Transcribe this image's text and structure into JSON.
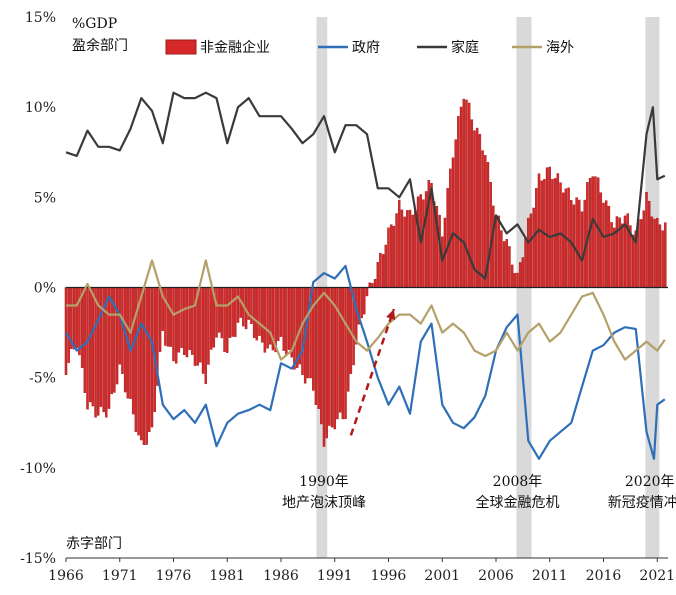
{
  "chart_data": {
    "type": "bar+line",
    "unit_label": "%GDP",
    "subtitle": "盈余部门",
    "bottom_label": "赤字部门",
    "ylim": [
      -15,
      15
    ],
    "yticks": [
      "15%",
      "10%",
      "5%",
      "0%",
      "-5%",
      "-10%",
      "-15%"
    ],
    "ytick_values": [
      15,
      10,
      5,
      0,
      -5,
      -10,
      -15
    ],
    "xlim": [
      1966,
      2022
    ],
    "xticks": [
      "1966",
      "1971",
      "1976",
      "1981",
      "1986",
      "1991",
      "1996",
      "2001",
      "2006",
      "2011",
      "2016",
      "2021"
    ],
    "xtick_values": [
      1966,
      1971,
      1976,
      1981,
      1986,
      1991,
      1996,
      2001,
      2006,
      2011,
      2016,
      2021
    ],
    "grid": false,
    "legend_position": "top",
    "shaded_periods": [
      [
        1989.3,
        1990.3
      ],
      [
        2007.9,
        2009.3
      ],
      [
        2019.9,
        2021.2
      ]
    ],
    "annotations": [
      {
        "line1": "1990年",
        "line2": "地产泡沫顶峰",
        "x": 1990.0
      },
      {
        "line1": "2008年",
        "line2": "全球金融危机",
        "x": 2008.0
      },
      {
        "line1": "2020年",
        "line2": "新冠疫情冲击",
        "x": 2020.3
      }
    ],
    "arrow": {
      "from": [
        1992.5,
        -8.2
      ],
      "to": [
        1996.5,
        -1.2
      ],
      "color": "#b01a1a"
    },
    "series": [
      {
        "name": "非金融企业",
        "kind": "bar",
        "color": "#d62828",
        "edge": "#9e1b1b",
        "points": [
          [
            1966,
            -4.5
          ],
          [
            1967,
            -3.0
          ],
          [
            1968,
            -6.5
          ],
          [
            1969,
            -7.0
          ],
          [
            1970,
            -6.8
          ],
          [
            1971,
            -4.5
          ],
          [
            1972,
            -6.5
          ],
          [
            1973,
            -8.8
          ],
          [
            1974,
            -8.0
          ],
          [
            1975,
            -2.5
          ],
          [
            1976,
            -4.0
          ],
          [
            1977,
            -3.5
          ],
          [
            1978,
            -4.0
          ],
          [
            1979,
            -5.0
          ],
          [
            1980,
            -2.5
          ],
          [
            1981,
            -3.5
          ],
          [
            1982,
            -2.0
          ],
          [
            1983,
            -2.0
          ],
          [
            1984,
            -3.0
          ],
          [
            1985,
            -3.5
          ],
          [
            1986,
            -3.0
          ],
          [
            1987,
            -4.0
          ],
          [
            1988,
            -4.8
          ],
          [
            1989,
            -5.5
          ],
          [
            1990,
            -8.5
          ],
          [
            1991,
            -7.5
          ],
          [
            1992,
            -7.0
          ],
          [
            1993,
            -3.0
          ],
          [
            1994,
            -0.5
          ],
          [
            1995,
            1.2
          ],
          [
            1996,
            3.0
          ],
          [
            1997,
            4.5
          ],
          [
            1998,
            4.0
          ],
          [
            1999,
            5.0
          ],
          [
            2000,
            5.8
          ],
          [
            2001,
            3.0
          ],
          [
            2002,
            7.5
          ],
          [
            2003,
            10.8
          ],
          [
            2004,
            9.0
          ],
          [
            2005,
            7.5
          ],
          [
            2006,
            4.0
          ],
          [
            2007,
            2.5
          ],
          [
            2008,
            0.5
          ],
          [
            2009,
            3.5
          ],
          [
            2010,
            6.0
          ],
          [
            2011,
            6.5
          ],
          [
            2012,
            5.8
          ],
          [
            2013,
            5.0
          ],
          [
            2014,
            4.5
          ],
          [
            2015,
            6.5
          ],
          [
            2016,
            5.0
          ],
          [
            2017,
            3.5
          ],
          [
            2018,
            4.0
          ],
          [
            2019,
            3.0
          ],
          [
            2020,
            5.0
          ],
          [
            2021,
            3.5
          ]
        ]
      },
      {
        "name": "政府",
        "kind": "line",
        "color": "#2e6fb8",
        "points": [
          [
            1966,
            -2.5
          ],
          [
            1967,
            -3.5
          ],
          [
            1968,
            -3.0
          ],
          [
            1969,
            -1.8
          ],
          [
            1970,
            -0.5
          ],
          [
            1971,
            -1.5
          ],
          [
            1972,
            -3.5
          ],
          [
            1973,
            -2.0
          ],
          [
            1974,
            -3.0
          ],
          [
            1975,
            -6.5
          ],
          [
            1976,
            -7.3
          ],
          [
            1977,
            -6.8
          ],
          [
            1978,
            -7.5
          ],
          [
            1979,
            -6.5
          ],
          [
            1980,
            -8.8
          ],
          [
            1981,
            -7.5
          ],
          [
            1982,
            -7.0
          ],
          [
            1983,
            -6.8
          ],
          [
            1984,
            -6.5
          ],
          [
            1985,
            -6.8
          ],
          [
            1986,
            -4.2
          ],
          [
            1987,
            -4.5
          ],
          [
            1988,
            -3.5
          ],
          [
            1989,
            0.3
          ],
          [
            1990,
            0.8
          ],
          [
            1991,
            0.5
          ],
          [
            1992,
            1.2
          ],
          [
            1993,
            -1.2
          ],
          [
            1994,
            -3.0
          ],
          [
            1995,
            -5.0
          ],
          [
            1996,
            -6.5
          ],
          [
            1997,
            -5.5
          ],
          [
            1998,
            -7.0
          ],
          [
            1999,
            -3.0
          ],
          [
            2000,
            -2.0
          ],
          [
            2001,
            -6.5
          ],
          [
            2002,
            -7.5
          ],
          [
            2003,
            -7.8
          ],
          [
            2004,
            -7.2
          ],
          [
            2005,
            -6.0
          ],
          [
            2006,
            -3.5
          ],
          [
            2007,
            -2.2
          ],
          [
            2008,
            -1.5
          ],
          [
            2009,
            -8.5
          ],
          [
            2010,
            -9.5
          ],
          [
            2011,
            -8.5
          ],
          [
            2012,
            -8.0
          ],
          [
            2013,
            -7.5
          ],
          [
            2014,
            -5.5
          ],
          [
            2015,
            -3.5
          ],
          [
            2016,
            -3.2
          ],
          [
            2017,
            -2.5
          ],
          [
            2018,
            -2.2
          ],
          [
            2019,
            -2.3
          ],
          [
            2020,
            -8.0
          ],
          [
            2020.7,
            -9.5
          ],
          [
            2021,
            -6.5
          ],
          [
            2021.7,
            -6.2
          ]
        ]
      },
      {
        "name": "家庭",
        "kind": "line",
        "color": "#3a3a3a",
        "points": [
          [
            1966,
            7.5
          ],
          [
            1967,
            7.3
          ],
          [
            1968,
            8.7
          ],
          [
            1969,
            7.8
          ],
          [
            1970,
            7.8
          ],
          [
            1971,
            7.6
          ],
          [
            1972,
            8.8
          ],
          [
            1973,
            10.5
          ],
          [
            1974,
            9.8
          ],
          [
            1975,
            8.0
          ],
          [
            1976,
            10.8
          ],
          [
            1977,
            10.5
          ],
          [
            1978,
            10.5
          ],
          [
            1979,
            10.8
          ],
          [
            1980,
            10.5
          ],
          [
            1981,
            8.0
          ],
          [
            1982,
            10.0
          ],
          [
            1983,
            10.5
          ],
          [
            1984,
            9.5
          ],
          [
            1985,
            9.5
          ],
          [
            1986,
            9.5
          ],
          [
            1987,
            8.8
          ],
          [
            1988,
            8.0
          ],
          [
            1989,
            8.5
          ],
          [
            1990,
            9.5
          ],
          [
            1991,
            7.5
          ],
          [
            1992,
            9.0
          ],
          [
            1993,
            9.0
          ],
          [
            1994,
            8.5
          ],
          [
            1995,
            5.5
          ],
          [
            1996,
            5.5
          ],
          [
            1997,
            5.0
          ],
          [
            1998,
            6.0
          ],
          [
            1999,
            2.5
          ],
          [
            2000,
            5.5
          ],
          [
            2001,
            1.5
          ],
          [
            2002,
            3.0
          ],
          [
            2003,
            2.5
          ],
          [
            2004,
            1.0
          ],
          [
            2005,
            0.5
          ],
          [
            2006,
            4.0
          ],
          [
            2007,
            3.0
          ],
          [
            2008,
            3.5
          ],
          [
            2009,
            2.5
          ],
          [
            2010,
            3.2
          ],
          [
            2011,
            2.8
          ],
          [
            2012,
            3.0
          ],
          [
            2013,
            2.5
          ],
          [
            2014,
            1.5
          ],
          [
            2015,
            3.8
          ],
          [
            2016,
            2.8
          ],
          [
            2017,
            3.0
          ],
          [
            2018,
            3.5
          ],
          [
            2019,
            2.5
          ],
          [
            2020,
            8.5
          ],
          [
            2020.6,
            10.0
          ],
          [
            2021,
            6.0
          ],
          [
            2021.7,
            6.2
          ]
        ]
      },
      {
        "name": "海外",
        "kind": "line",
        "color": "#b5a06a",
        "points": [
          [
            1966,
            -1.0
          ],
          [
            1967,
            -1.0
          ],
          [
            1968,
            0.2
          ],
          [
            1969,
            -1.0
          ],
          [
            1970,
            -1.5
          ],
          [
            1971,
            -1.5
          ],
          [
            1972,
            -2.5
          ],
          [
            1973,
            -0.5
          ],
          [
            1974,
            1.5
          ],
          [
            1975,
            -0.5
          ],
          [
            1976,
            -1.5
          ],
          [
            1977,
            -1.2
          ],
          [
            1978,
            -1.0
          ],
          [
            1979,
            1.5
          ],
          [
            1980,
            -1.0
          ],
          [
            1981,
            -1.0
          ],
          [
            1982,
            -0.5
          ],
          [
            1983,
            -1.5
          ],
          [
            1984,
            -2.0
          ],
          [
            1985,
            -2.5
          ],
          [
            1986,
            -4.0
          ],
          [
            1987,
            -3.5
          ],
          [
            1988,
            -2.0
          ],
          [
            1989,
            -1.0
          ],
          [
            1990,
            -0.3
          ],
          [
            1991,
            -1.0
          ],
          [
            1992,
            -2.0
          ],
          [
            1993,
            -3.0
          ],
          [
            1994,
            -3.5
          ],
          [
            1995,
            -2.8
          ],
          [
            1996,
            -2.0
          ],
          [
            1997,
            -1.5
          ],
          [
            1998,
            -1.5
          ],
          [
            1999,
            -2.0
          ],
          [
            2000,
            -1.0
          ],
          [
            2001,
            -2.5
          ],
          [
            2002,
            -2.0
          ],
          [
            2003,
            -2.5
          ],
          [
            2004,
            -3.5
          ],
          [
            2005,
            -3.8
          ],
          [
            2006,
            -3.5
          ],
          [
            2007,
            -2.5
          ],
          [
            2008,
            -3.5
          ],
          [
            2009,
            -2.5
          ],
          [
            2010,
            -2.0
          ],
          [
            2011,
            -3.0
          ],
          [
            2012,
            -2.5
          ],
          [
            2013,
            -1.5
          ],
          [
            2014,
            -0.5
          ],
          [
            2015,
            -0.3
          ],
          [
            2016,
            -1.5
          ],
          [
            2017,
            -3.0
          ],
          [
            2018,
            -4.0
          ],
          [
            2019,
            -3.5
          ],
          [
            2020,
            -3.0
          ],
          [
            2021,
            -3.5
          ],
          [
            2021.7,
            -2.9
          ]
        ]
      }
    ]
  }
}
